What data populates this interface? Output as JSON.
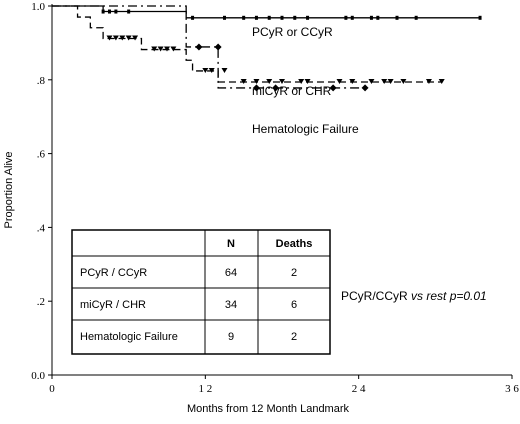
{
  "chart_data": {
    "type": "line",
    "xlabel": "Months from 12 Month Landmark",
    "ylabel": "Proportion Alive",
    "xlim": [
      0,
      36
    ],
    "ylim": [
      0,
      1
    ],
    "x_ticks": [
      0,
      12,
      24,
      36
    ],
    "x_tick_labels": [
      "0",
      "1 2",
      "2 4",
      "3 6"
    ],
    "y_ticks": [
      0,
      0.2,
      0.4,
      0.6,
      0.8,
      1.0
    ],
    "y_tick_labels": [
      "0.0",
      ".2",
      ".4",
      ".6",
      ".8",
      "1.0"
    ],
    "grid": false,
    "series": [
      {
        "name": "PCyR or CCyR",
        "dash": "solid",
        "steps": [
          [
            0,
            1.0
          ],
          [
            4,
            0.985
          ],
          [
            10.5,
            0.968
          ],
          [
            33.5,
            0.968
          ]
        ],
        "censored": [
          [
            4,
            0.985
          ],
          [
            4.5,
            0.985
          ],
          [
            5,
            0.985
          ],
          [
            6,
            0.985
          ],
          [
            11,
            0.968
          ],
          [
            13.5,
            0.968
          ],
          [
            15,
            0.968
          ],
          [
            16,
            0.968
          ],
          [
            17,
            0.968
          ],
          [
            18,
            0.968
          ],
          [
            19,
            0.968
          ],
          [
            20,
            0.968
          ],
          [
            23,
            0.968
          ],
          [
            23.5,
            0.968
          ],
          [
            25,
            0.968
          ],
          [
            25.5,
            0.968
          ],
          [
            27,
            0.968
          ],
          [
            28.5,
            0.968
          ],
          [
            33.5,
            0.968
          ]
        ]
      },
      {
        "name": "miCyR or CHR",
        "dash": "dash",
        "steps": [
          [
            0,
            1.0
          ],
          [
            2,
            0.97
          ],
          [
            3,
            0.941
          ],
          [
            4,
            0.912
          ],
          [
            7,
            0.882
          ],
          [
            10.5,
            0.853
          ],
          [
            11,
            0.824
          ],
          [
            13,
            0.794
          ],
          [
            14.5,
            0.794
          ],
          [
            30.5,
            0.794
          ]
        ],
        "censored": [
          [
            4.5,
            0.912
          ],
          [
            5,
            0.912
          ],
          [
            5.5,
            0.912
          ],
          [
            6,
            0.912
          ],
          [
            6.5,
            0.912
          ],
          [
            8,
            0.882
          ],
          [
            8.5,
            0.882
          ],
          [
            9,
            0.882
          ],
          [
            9.5,
            0.882
          ],
          [
            12,
            0.824
          ],
          [
            12.5,
            0.824
          ],
          [
            13.5,
            0.824
          ],
          [
            15,
            0.794
          ],
          [
            16,
            0.794
          ],
          [
            17,
            0.794
          ],
          [
            18,
            0.794
          ],
          [
            19.5,
            0.794
          ],
          [
            20,
            0.794
          ],
          [
            22.5,
            0.794
          ],
          [
            23.5,
            0.794
          ],
          [
            25,
            0.794
          ],
          [
            26,
            0.794
          ],
          [
            26.5,
            0.794
          ],
          [
            27.5,
            0.794
          ],
          [
            29.5,
            0.794
          ],
          [
            30.5,
            0.794
          ]
        ]
      },
      {
        "name": "Hematologic Failure",
        "dash": "dash-dot",
        "steps": [
          [
            0,
            1.0
          ],
          [
            10.5,
            0.889
          ],
          [
            13,
            0.778
          ],
          [
            14.5,
            0.778
          ],
          [
            24.5,
            0.778
          ]
        ],
        "censored": [
          [
            11.5,
            0.889
          ],
          [
            13,
            0.889
          ],
          [
            16,
            0.778
          ],
          [
            17.5,
            0.778
          ],
          [
            22,
            0.778
          ],
          [
            24.5,
            0.778
          ]
        ]
      }
    ],
    "series_labels": [
      "PCyR or CCyR",
      "miCyR or CHR",
      "Hematologic Failure"
    ],
    "annotation": {
      "text_prefix": "PCyR/CCyR ",
      "text_italic": "vs rest p=0.01"
    },
    "table": {
      "headers": [
        "",
        "N",
        "Deaths"
      ],
      "rows": [
        [
          "PCyR / CCyR",
          "64",
          "2"
        ],
        [
          "miCyR / CHR",
          "34",
          "6"
        ],
        [
          "Hematologic Failure",
          "9",
          "2"
        ]
      ]
    }
  }
}
